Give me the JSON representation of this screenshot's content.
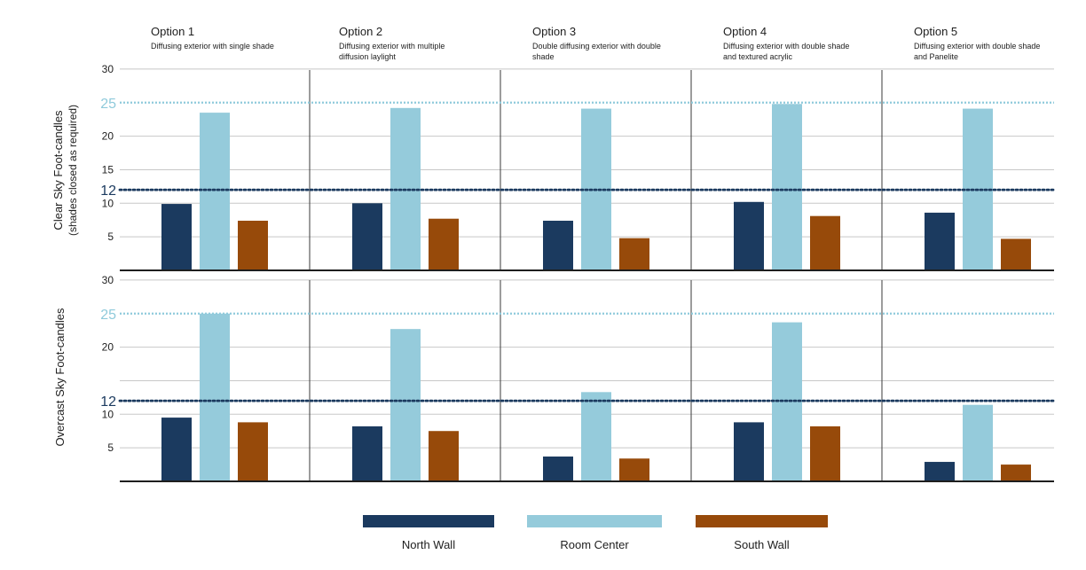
{
  "chart_data": {
    "type": "bar",
    "categories": [
      "Option 1",
      "Option 2",
      "Option 3",
      "Option 4",
      "Option 5"
    ],
    "category_subtitles": [
      "Diffusing exterior with single shade",
      "Diffusing exterior with multiple diffusion laylight",
      "Double diffusing exterior with double shade",
      "Diffusing exterior with double shade and textured acrylic",
      "Diffusing exterior with double shade and Panelite"
    ],
    "panels": [
      {
        "ylabel": "Clear Sky Foot-candles",
        "ylabel_sub": "(shades closed as required)",
        "ylim": [
          0,
          30
        ],
        "yticks": [
          "5",
          "10",
          "15",
          "20",
          "30"
        ],
        "reference_lines": [
          {
            "value": 25,
            "label": "25",
            "color": "#8fcadb"
          },
          {
            "value": 12,
            "label": "12",
            "color": "#1b3a5f"
          }
        ],
        "series": [
          {
            "name": "North Wall",
            "values": [
              9.9,
              10.0,
              7.4,
              10.2,
              8.6
            ]
          },
          {
            "name": "Room Center",
            "values": [
              23.5,
              24.2,
              24.1,
              24.8,
              24.1
            ]
          },
          {
            "name": "South Wall",
            "values": [
              7.4,
              7.7,
              4.8,
              8.1,
              4.7
            ]
          }
        ]
      },
      {
        "ylabel": "Overcast Sky Foot-candles",
        "ylabel_sub": "",
        "ylim": [
          0,
          30
        ],
        "yticks": [
          "5",
          "10",
          "20",
          "30"
        ],
        "reference_lines": [
          {
            "value": 25,
            "label": "25",
            "color": "#8fcadb"
          },
          {
            "value": 12,
            "label": "12",
            "color": "#1b3a5f"
          }
        ],
        "series": [
          {
            "name": "North Wall",
            "values": [
              9.5,
              8.2,
              3.7,
              8.8,
              2.9
            ]
          },
          {
            "name": "Room Center",
            "values": [
              25.0,
              22.7,
              13.3,
              23.7,
              11.4
            ]
          },
          {
            "name": "South Wall",
            "values": [
              8.8,
              7.5,
              3.4,
              8.2,
              2.5
            ]
          }
        ]
      }
    ],
    "legend": [
      "North Wall",
      "Room Center",
      "South Wall"
    ],
    "legend_position": "bottom",
    "colors": {
      "North Wall": "#1b3a5f",
      "Room Center": "#95cbdb",
      "South Wall": "#974a0a"
    },
    "grid": true
  }
}
